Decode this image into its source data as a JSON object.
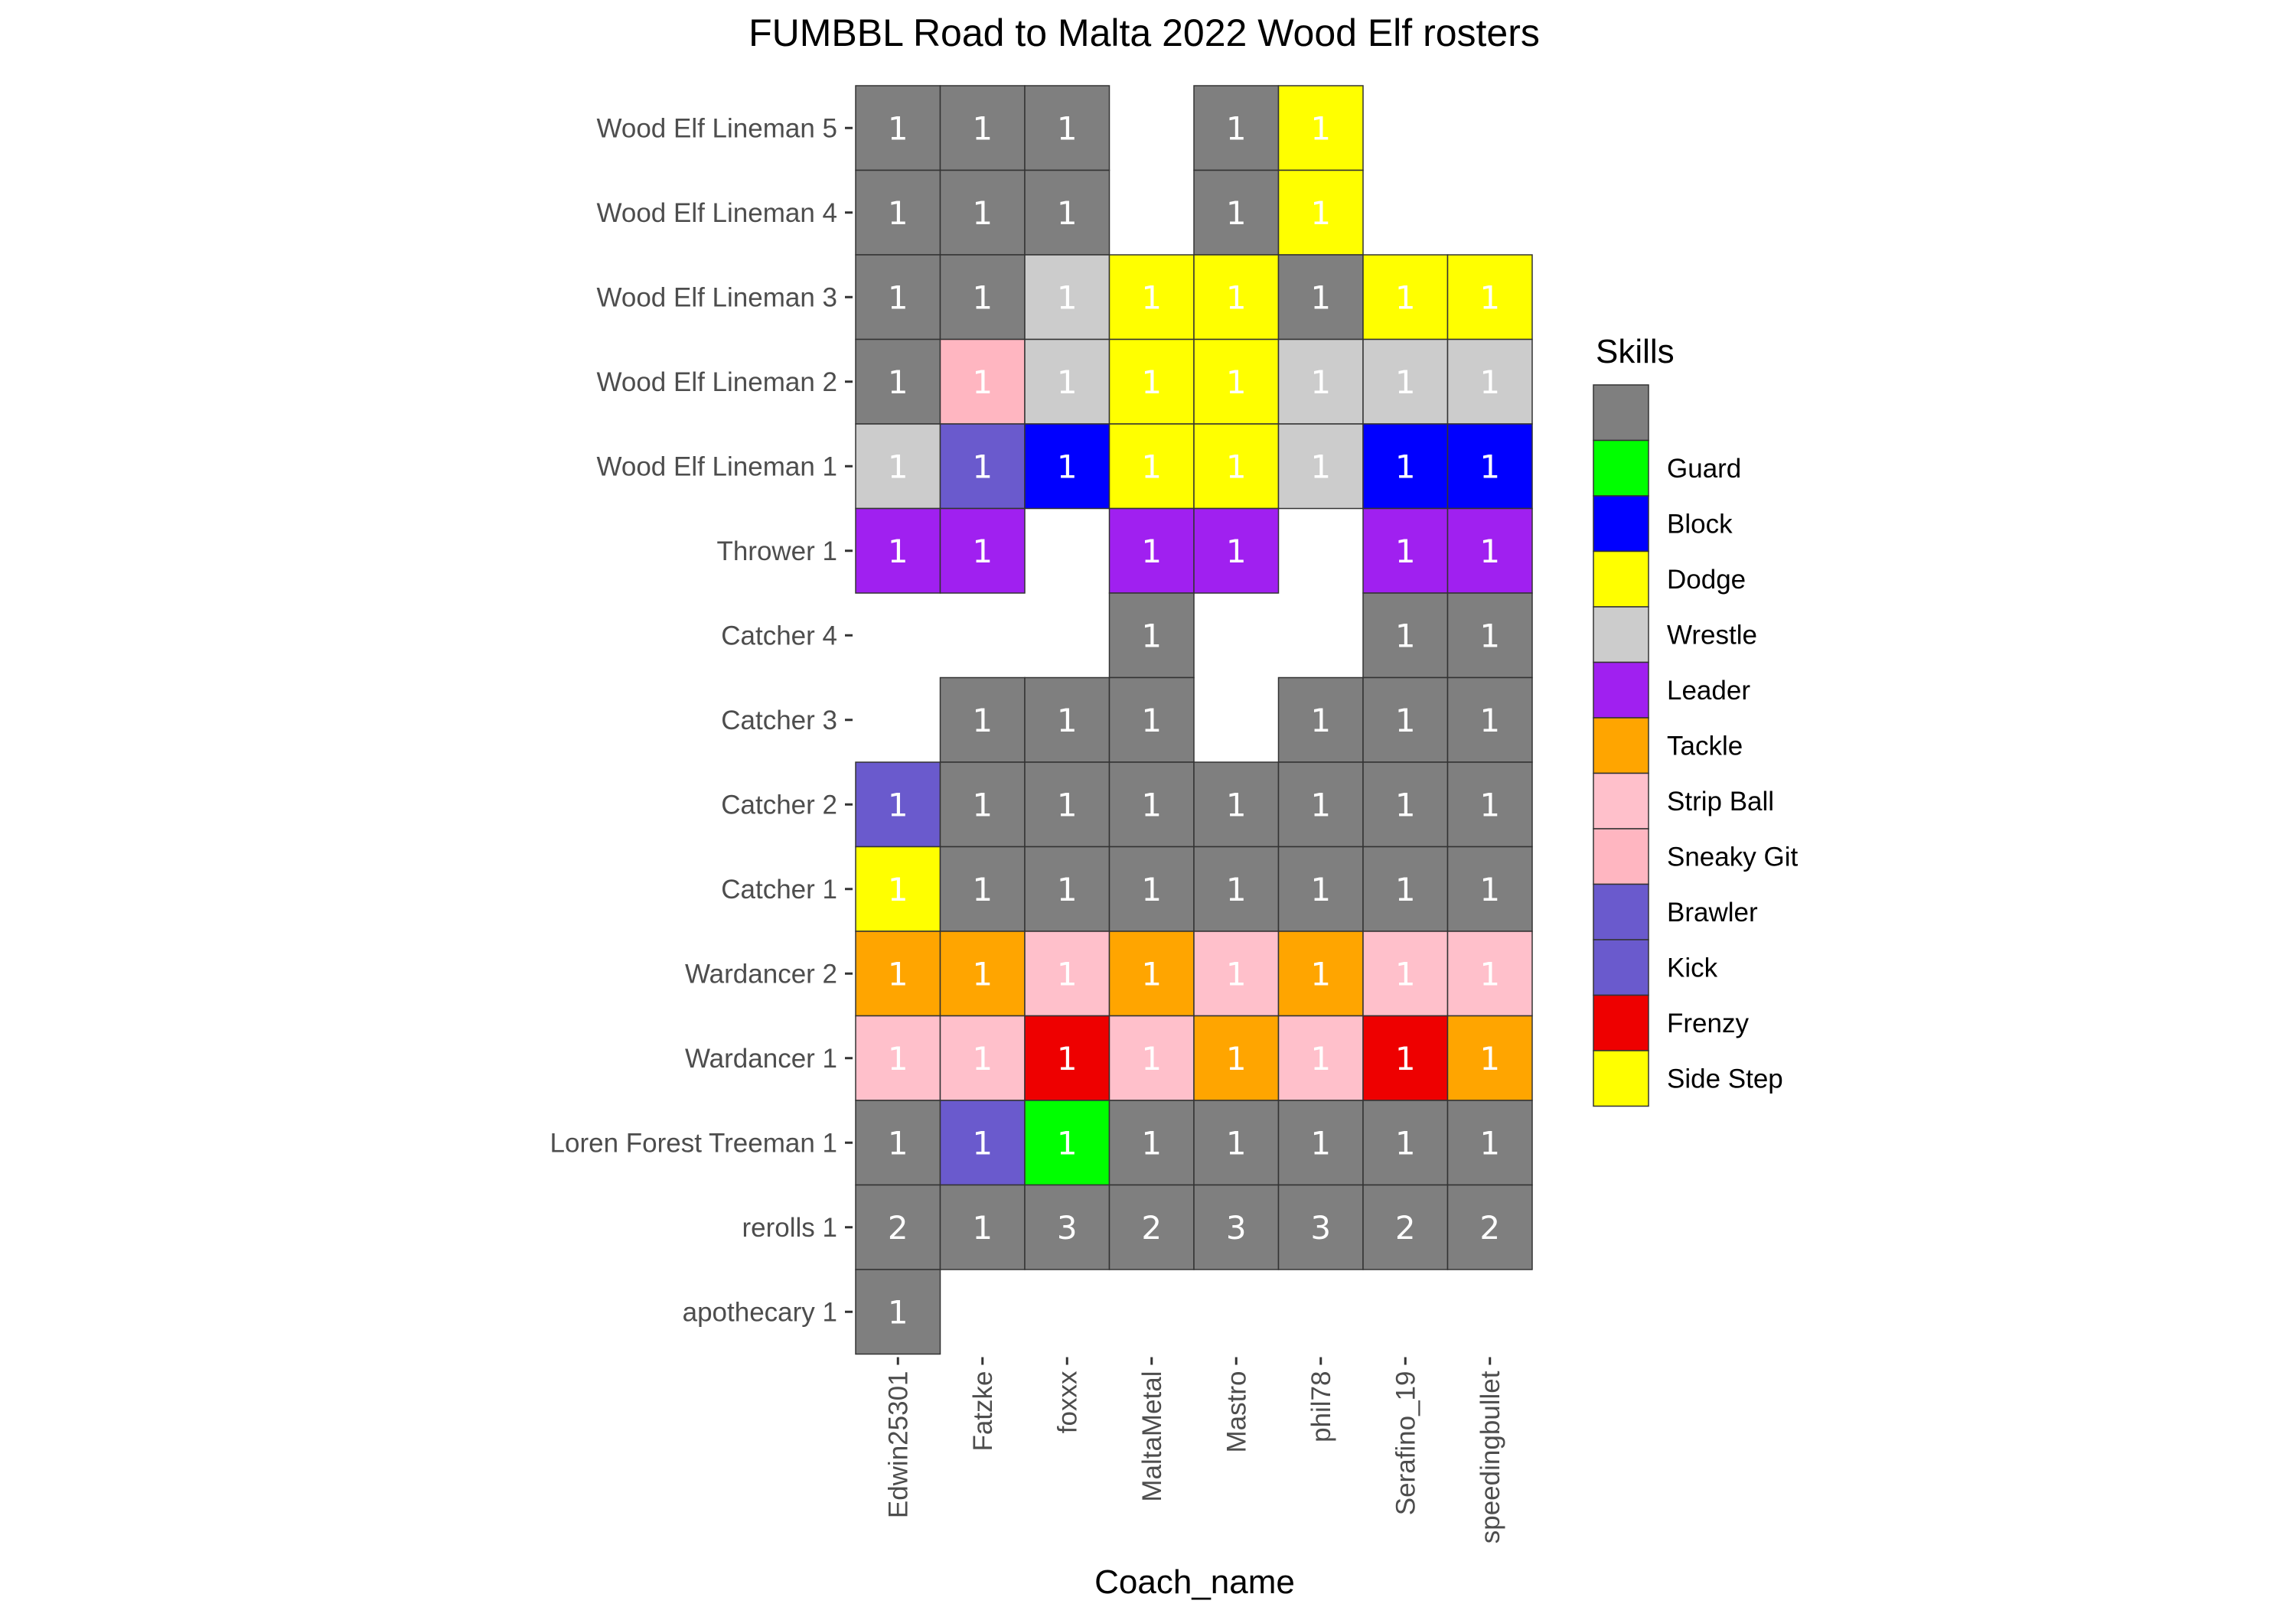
{
  "chart_data": {
    "type": "heatmap",
    "title": "FUMBBL Road to Malta 2022 Wood Elf rosters",
    "xlabel": "Coach_name",
    "ylabel": "",
    "x_categories": [
      "Edwin25301",
      "Fatzke",
      "foxxx",
      "MaltaMetal",
      "Mastro",
      "phil78",
      "Serafino_19",
      "speedingbullet"
    ],
    "y_categories": [
      "Wood Elf Lineman 5",
      "Wood Elf Lineman 4",
      "Wood Elf Lineman 3",
      "Wood Elf Lineman 2",
      "Wood Elf Lineman 1",
      "Thrower 1",
      "Catcher 4",
      "Catcher 3",
      "Catcher 2",
      "Catcher 1",
      "Wardancer 2",
      "Wardancer 1",
      "Loren Forest Treeman 1",
      "rerolls 1",
      "apothecary 1"
    ],
    "legend": {
      "title": "Skills",
      "position": "right",
      "entries": [
        {
          "label": "",
          "color": "#7f7f7f"
        },
        {
          "label": "Guard",
          "color": "#00ff00"
        },
        {
          "label": "Block",
          "color": "#0000ff"
        },
        {
          "label": "Dodge",
          "color": "#ffff00"
        },
        {
          "label": "Wrestle",
          "color": "#cccccc"
        },
        {
          "label": "Leader",
          "color": "#a020f0"
        },
        {
          "label": "Tackle",
          "color": "#ffa500"
        },
        {
          "label": "Strip Ball",
          "color": "#ffc0cb"
        },
        {
          "label": "Sneaky Git",
          "color": "#ffb6c1"
        },
        {
          "label": "Brawler",
          "color": "#6a5acd"
        },
        {
          "label": "Kick",
          "color": "#6a5acd"
        },
        {
          "label": "Frenzy",
          "color": "#ee0000"
        },
        {
          "label": "Side Step",
          "color": "#ffff00"
        }
      ]
    },
    "cells": [
      {
        "y": "Wood Elf Lineman 5",
        "x": "Edwin25301",
        "value": 1,
        "skill": ""
      },
      {
        "y": "Wood Elf Lineman 5",
        "x": "Fatzke",
        "value": 1,
        "skill": ""
      },
      {
        "y": "Wood Elf Lineman 5",
        "x": "foxxx",
        "value": 1,
        "skill": ""
      },
      {
        "y": "Wood Elf Lineman 5",
        "x": "Mastro",
        "value": 1,
        "skill": ""
      },
      {
        "y": "Wood Elf Lineman 5",
        "x": "phil78",
        "value": 1,
        "skill": "Dodge"
      },
      {
        "y": "Wood Elf Lineman 4",
        "x": "Edwin25301",
        "value": 1,
        "skill": ""
      },
      {
        "y": "Wood Elf Lineman 4",
        "x": "Fatzke",
        "value": 1,
        "skill": ""
      },
      {
        "y": "Wood Elf Lineman 4",
        "x": "foxxx",
        "value": 1,
        "skill": ""
      },
      {
        "y": "Wood Elf Lineman 4",
        "x": "Mastro",
        "value": 1,
        "skill": ""
      },
      {
        "y": "Wood Elf Lineman 4",
        "x": "phil78",
        "value": 1,
        "skill": "Dodge"
      },
      {
        "y": "Wood Elf Lineman 3",
        "x": "Edwin25301",
        "value": 1,
        "skill": ""
      },
      {
        "y": "Wood Elf Lineman 3",
        "x": "Fatzke",
        "value": 1,
        "skill": ""
      },
      {
        "y": "Wood Elf Lineman 3",
        "x": "foxxx",
        "value": 1,
        "skill": "Wrestle"
      },
      {
        "y": "Wood Elf Lineman 3",
        "x": "MaltaMetal",
        "value": 1,
        "skill": "Dodge"
      },
      {
        "y": "Wood Elf Lineman 3",
        "x": "Mastro",
        "value": 1,
        "skill": "Dodge"
      },
      {
        "y": "Wood Elf Lineman 3",
        "x": "phil78",
        "value": 1,
        "skill": ""
      },
      {
        "y": "Wood Elf Lineman 3",
        "x": "Serafino_19",
        "value": 1,
        "skill": "Dodge"
      },
      {
        "y": "Wood Elf Lineman 3",
        "x": "speedingbullet",
        "value": 1,
        "skill": "Dodge"
      },
      {
        "y": "Wood Elf Lineman 2",
        "x": "Edwin25301",
        "value": 1,
        "skill": ""
      },
      {
        "y": "Wood Elf Lineman 2",
        "x": "Fatzke",
        "value": 1,
        "skill": "Sneaky Git"
      },
      {
        "y": "Wood Elf Lineman 2",
        "x": "foxxx",
        "value": 1,
        "skill": "Wrestle"
      },
      {
        "y": "Wood Elf Lineman 2",
        "x": "MaltaMetal",
        "value": 1,
        "skill": "Dodge"
      },
      {
        "y": "Wood Elf Lineman 2",
        "x": "Mastro",
        "value": 1,
        "skill": "Dodge"
      },
      {
        "y": "Wood Elf Lineman 2",
        "x": "phil78",
        "value": 1,
        "skill": "Wrestle"
      },
      {
        "y": "Wood Elf Lineman 2",
        "x": "Serafino_19",
        "value": 1,
        "skill": "Wrestle"
      },
      {
        "y": "Wood Elf Lineman 2",
        "x": "speedingbullet",
        "value": 1,
        "skill": "Wrestle"
      },
      {
        "y": "Wood Elf Lineman 1",
        "x": "Edwin25301",
        "value": 1,
        "skill": "Wrestle"
      },
      {
        "y": "Wood Elf Lineman 1",
        "x": "Fatzke",
        "value": 1,
        "skill": "Brawler"
      },
      {
        "y": "Wood Elf Lineman 1",
        "x": "foxxx",
        "value": 1,
        "skill": "Block"
      },
      {
        "y": "Wood Elf Lineman 1",
        "x": "MaltaMetal",
        "value": 1,
        "skill": "Dodge"
      },
      {
        "y": "Wood Elf Lineman 1",
        "x": "Mastro",
        "value": 1,
        "skill": "Dodge"
      },
      {
        "y": "Wood Elf Lineman 1",
        "x": "phil78",
        "value": 1,
        "skill": "Wrestle"
      },
      {
        "y": "Wood Elf Lineman 1",
        "x": "Serafino_19",
        "value": 1,
        "skill": "Block"
      },
      {
        "y": "Wood Elf Lineman 1",
        "x": "speedingbullet",
        "value": 1,
        "skill": "Block"
      },
      {
        "y": "Thrower 1",
        "x": "Edwin25301",
        "value": 1,
        "skill": "Leader"
      },
      {
        "y": "Thrower 1",
        "x": "Fatzke",
        "value": 1,
        "skill": "Leader"
      },
      {
        "y": "Thrower 1",
        "x": "MaltaMetal",
        "value": 1,
        "skill": "Leader"
      },
      {
        "y": "Thrower 1",
        "x": "Mastro",
        "value": 1,
        "skill": "Leader"
      },
      {
        "y": "Thrower 1",
        "x": "Serafino_19",
        "value": 1,
        "skill": "Leader"
      },
      {
        "y": "Thrower 1",
        "x": "speedingbullet",
        "value": 1,
        "skill": "Leader"
      },
      {
        "y": "Catcher 4",
        "x": "MaltaMetal",
        "value": 1,
        "skill": ""
      },
      {
        "y": "Catcher 4",
        "x": "Serafino_19",
        "value": 1,
        "skill": ""
      },
      {
        "y": "Catcher 4",
        "x": "speedingbullet",
        "value": 1,
        "skill": ""
      },
      {
        "y": "Catcher 3",
        "x": "Fatzke",
        "value": 1,
        "skill": ""
      },
      {
        "y": "Catcher 3",
        "x": "foxxx",
        "value": 1,
        "skill": ""
      },
      {
        "y": "Catcher 3",
        "x": "MaltaMetal",
        "value": 1,
        "skill": ""
      },
      {
        "y": "Catcher 3",
        "x": "phil78",
        "value": 1,
        "skill": ""
      },
      {
        "y": "Catcher 3",
        "x": "Serafino_19",
        "value": 1,
        "skill": ""
      },
      {
        "y": "Catcher 3",
        "x": "speedingbullet",
        "value": 1,
        "skill": ""
      },
      {
        "y": "Catcher 2",
        "x": "Edwin25301",
        "value": 1,
        "skill": "Kick"
      },
      {
        "y": "Catcher 2",
        "x": "Fatzke",
        "value": 1,
        "skill": ""
      },
      {
        "y": "Catcher 2",
        "x": "foxxx",
        "value": 1,
        "skill": ""
      },
      {
        "y": "Catcher 2",
        "x": "MaltaMetal",
        "value": 1,
        "skill": ""
      },
      {
        "y": "Catcher 2",
        "x": "Mastro",
        "value": 1,
        "skill": ""
      },
      {
        "y": "Catcher 2",
        "x": "phil78",
        "value": 1,
        "skill": ""
      },
      {
        "y": "Catcher 2",
        "x": "Serafino_19",
        "value": 1,
        "skill": ""
      },
      {
        "y": "Catcher 2",
        "x": "speedingbullet",
        "value": 1,
        "skill": ""
      },
      {
        "y": "Catcher 1",
        "x": "Edwin25301",
        "value": 1,
        "skill": "Side Step"
      },
      {
        "y": "Catcher 1",
        "x": "Fatzke",
        "value": 1,
        "skill": ""
      },
      {
        "y": "Catcher 1",
        "x": "foxxx",
        "value": 1,
        "skill": ""
      },
      {
        "y": "Catcher 1",
        "x": "MaltaMetal",
        "value": 1,
        "skill": ""
      },
      {
        "y": "Catcher 1",
        "x": "Mastro",
        "value": 1,
        "skill": ""
      },
      {
        "y": "Catcher 1",
        "x": "phil78",
        "value": 1,
        "skill": ""
      },
      {
        "y": "Catcher 1",
        "x": "Serafino_19",
        "value": 1,
        "skill": ""
      },
      {
        "y": "Catcher 1",
        "x": "speedingbullet",
        "value": 1,
        "skill": ""
      },
      {
        "y": "Wardancer 2",
        "x": "Edwin25301",
        "value": 1,
        "skill": "Tackle"
      },
      {
        "y": "Wardancer 2",
        "x": "Fatzke",
        "value": 1,
        "skill": "Tackle"
      },
      {
        "y": "Wardancer 2",
        "x": "foxxx",
        "value": 1,
        "skill": "Strip Ball"
      },
      {
        "y": "Wardancer 2",
        "x": "MaltaMetal",
        "value": 1,
        "skill": "Tackle"
      },
      {
        "y": "Wardancer 2",
        "x": "Mastro",
        "value": 1,
        "skill": "Strip Ball"
      },
      {
        "y": "Wardancer 2",
        "x": "phil78",
        "value": 1,
        "skill": "Tackle"
      },
      {
        "y": "Wardancer 2",
        "x": "Serafino_19",
        "value": 1,
        "skill": "Strip Ball"
      },
      {
        "y": "Wardancer 2",
        "x": "speedingbullet",
        "value": 1,
        "skill": "Strip Ball"
      },
      {
        "y": "Wardancer 1",
        "x": "Edwin25301",
        "value": 1,
        "skill": "Strip Ball"
      },
      {
        "y": "Wardancer 1",
        "x": "Fatzke",
        "value": 1,
        "skill": "Strip Ball"
      },
      {
        "y": "Wardancer 1",
        "x": "foxxx",
        "value": 1,
        "skill": "Frenzy"
      },
      {
        "y": "Wardancer 1",
        "x": "MaltaMetal",
        "value": 1,
        "skill": "Strip Ball"
      },
      {
        "y": "Wardancer 1",
        "x": "Mastro",
        "value": 1,
        "skill": "Tackle"
      },
      {
        "y": "Wardancer 1",
        "x": "phil78",
        "value": 1,
        "skill": "Strip Ball"
      },
      {
        "y": "Wardancer 1",
        "x": "Serafino_19",
        "value": 1,
        "skill": "Frenzy"
      },
      {
        "y": "Wardancer 1",
        "x": "speedingbullet",
        "value": 1,
        "skill": "Tackle"
      },
      {
        "y": "Loren Forest Treeman 1",
        "x": "Edwin25301",
        "value": 1,
        "skill": ""
      },
      {
        "y": "Loren Forest Treeman 1",
        "x": "Fatzke",
        "value": 1,
        "skill": "Brawler"
      },
      {
        "y": "Loren Forest Treeman 1",
        "x": "foxxx",
        "value": 1,
        "skill": "Guard"
      },
      {
        "y": "Loren Forest Treeman 1",
        "x": "MaltaMetal",
        "value": 1,
        "skill": ""
      },
      {
        "y": "Loren Forest Treeman 1",
        "x": "Mastro",
        "value": 1,
        "skill": ""
      },
      {
        "y": "Loren Forest Treeman 1",
        "x": "phil78",
        "value": 1,
        "skill": ""
      },
      {
        "y": "Loren Forest Treeman 1",
        "x": "Serafino_19",
        "value": 1,
        "skill": ""
      },
      {
        "y": "Loren Forest Treeman 1",
        "x": "speedingbullet",
        "value": 1,
        "skill": ""
      },
      {
        "y": "rerolls 1",
        "x": "Edwin25301",
        "value": 2,
        "skill": ""
      },
      {
        "y": "rerolls 1",
        "x": "Fatzke",
        "value": 1,
        "skill": ""
      },
      {
        "y": "rerolls 1",
        "x": "foxxx",
        "value": 3,
        "skill": ""
      },
      {
        "y": "rerolls 1",
        "x": "MaltaMetal",
        "value": 2,
        "skill": ""
      },
      {
        "y": "rerolls 1",
        "x": "Mastro",
        "value": 3,
        "skill": ""
      },
      {
        "y": "rerolls 1",
        "x": "phil78",
        "value": 3,
        "skill": ""
      },
      {
        "y": "rerolls 1",
        "x": "Serafino_19",
        "value": 2,
        "skill": ""
      },
      {
        "y": "rerolls 1",
        "x": "speedingbullet",
        "value": 2,
        "skill": ""
      },
      {
        "y": "apothecary 1",
        "x": "Edwin25301",
        "value": 1,
        "skill": ""
      }
    ]
  }
}
